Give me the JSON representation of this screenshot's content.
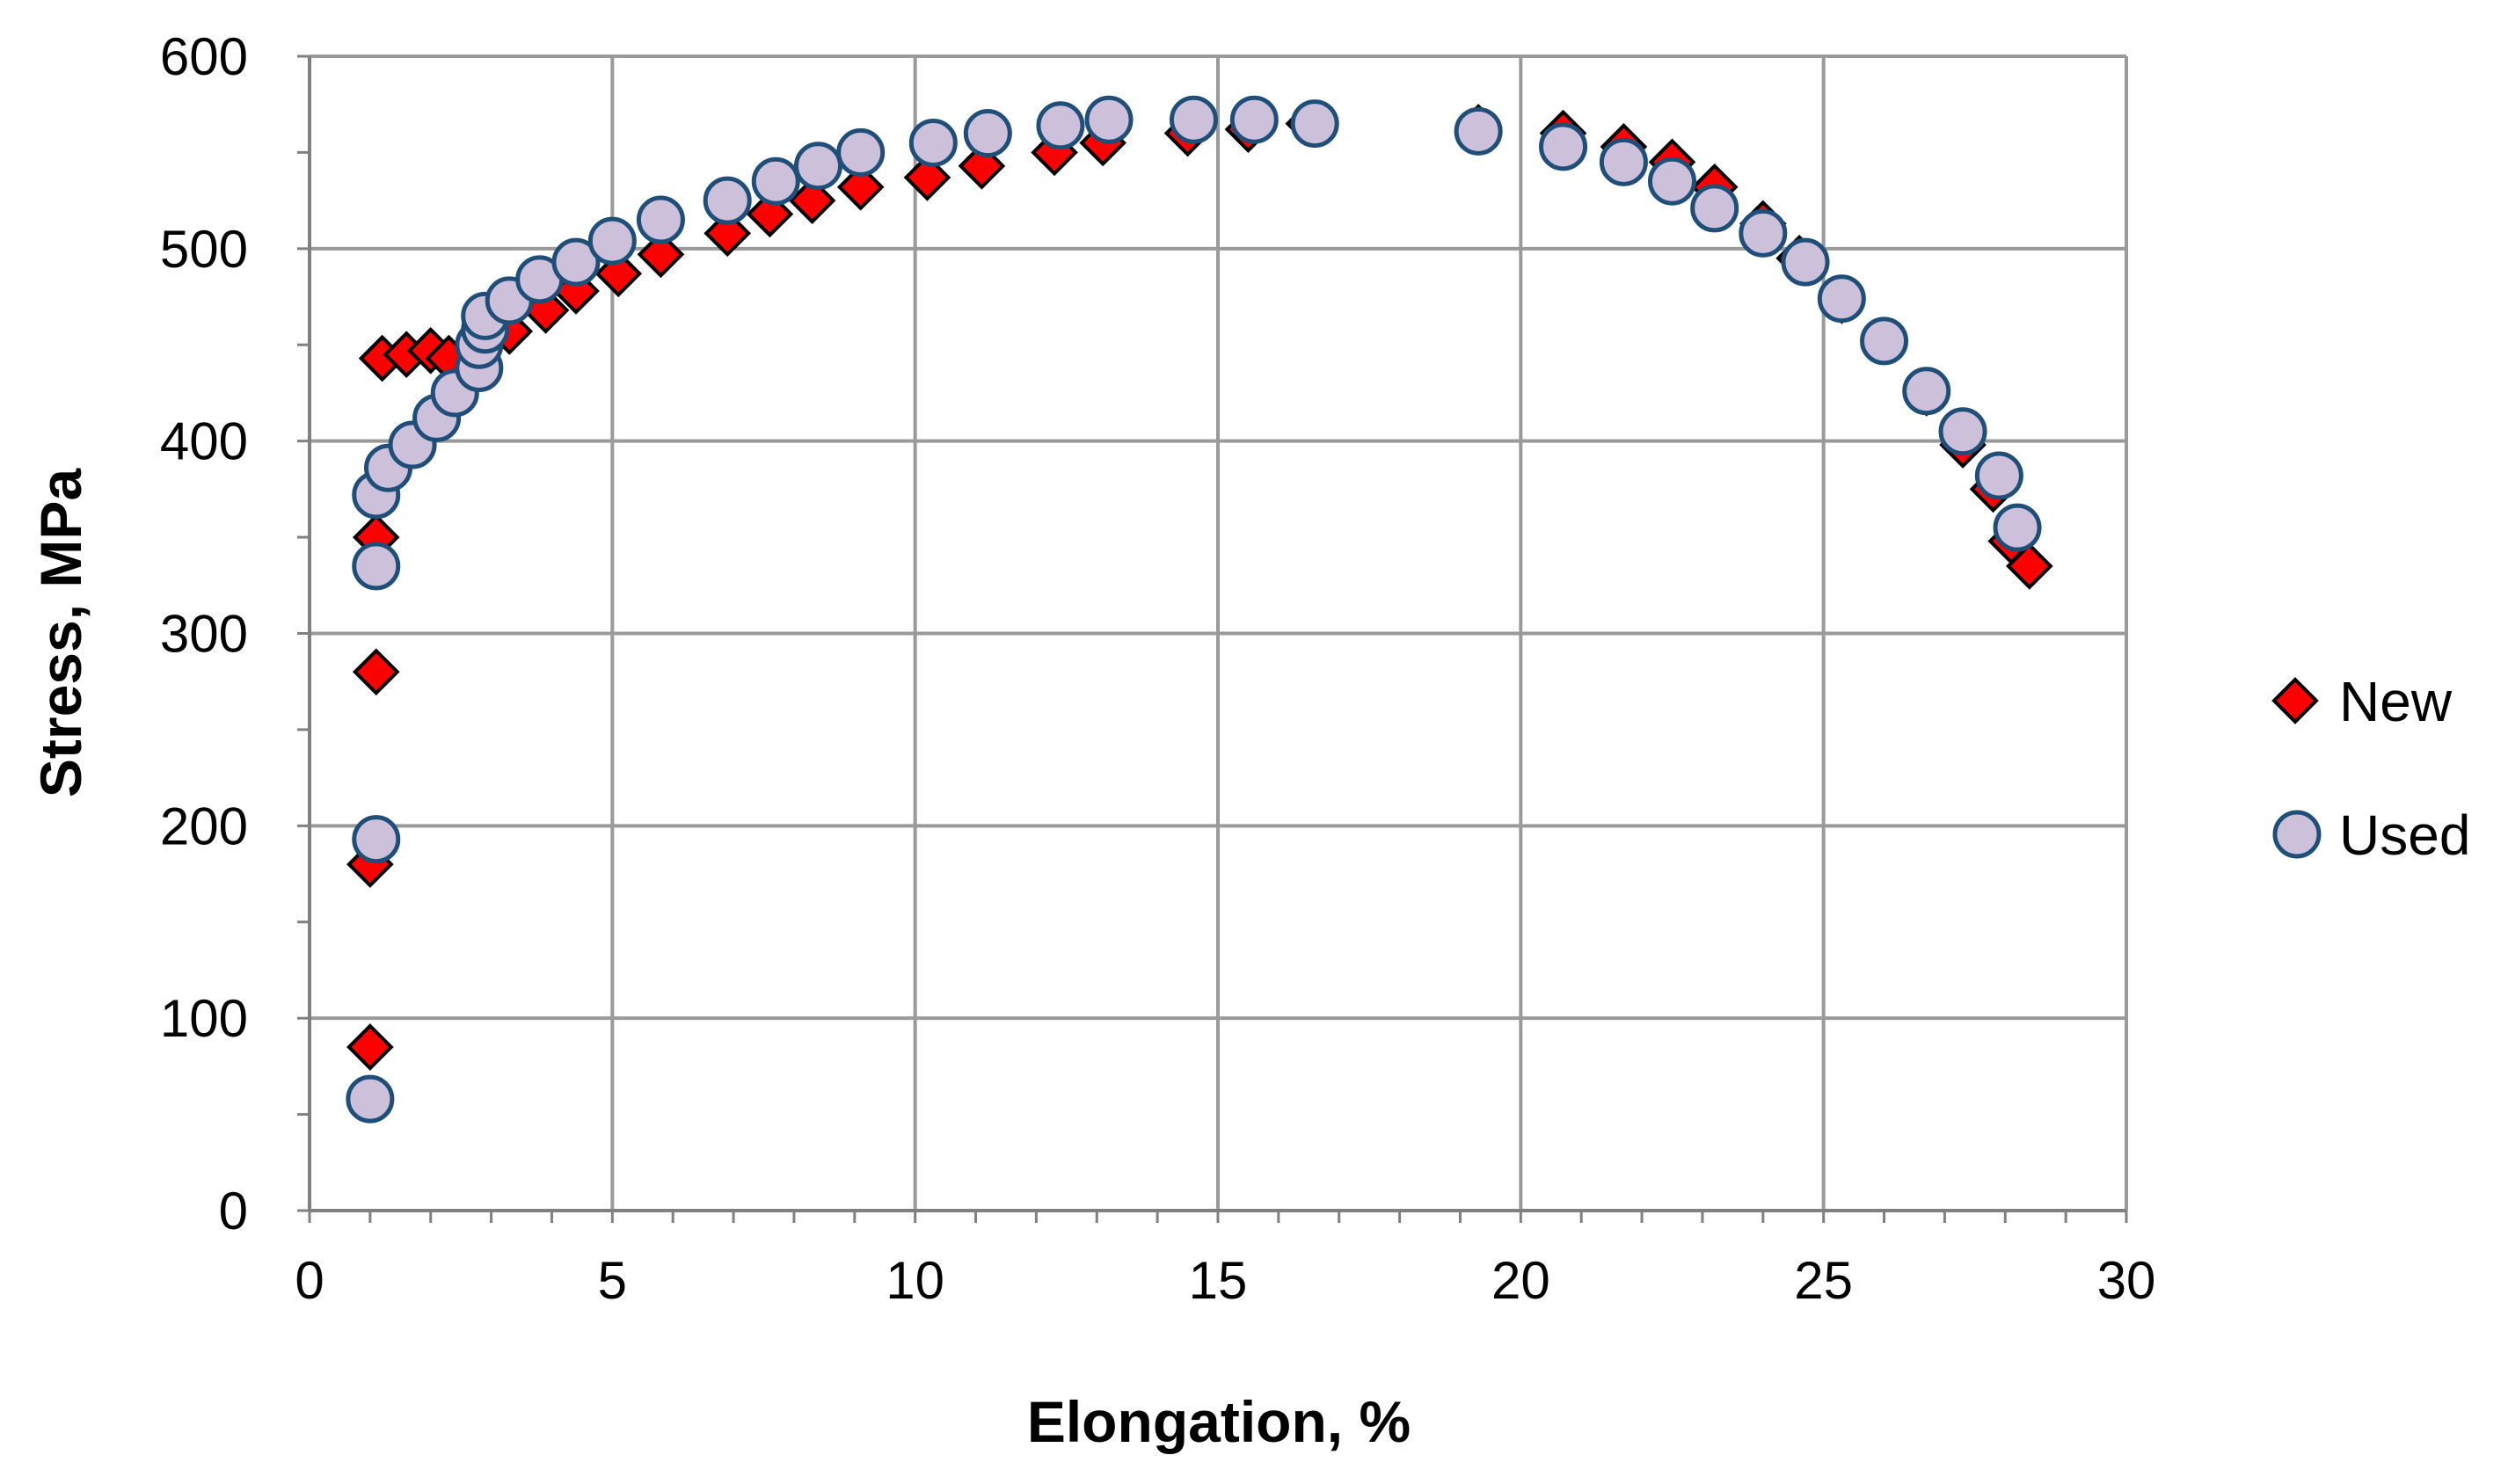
{
  "chart_data": {
    "type": "scatter",
    "title": "",
    "xlabel": "Elongation, %",
    "ylabel": "Stress, MPa",
    "xlim": [
      0,
      30
    ],
    "ylim": [
      0,
      600
    ],
    "x_ticks": [
      "0",
      "5",
      "10",
      "15",
      "20",
      "25",
      "30"
    ],
    "y_ticks": [
      "0",
      "100",
      "200",
      "300",
      "400",
      "500",
      "600"
    ],
    "grid": true,
    "legend_position": "right",
    "series": [
      {
        "name": "New",
        "marker": "diamond",
        "color": "#ff0000",
        "edge_color": "#000000",
        "points": [
          [
            1.0,
            85
          ],
          [
            1.0,
            180
          ],
          [
            1.1,
            280
          ],
          [
            1.1,
            350
          ],
          [
            1.2,
            443
          ],
          [
            1.6,
            445
          ],
          [
            2.0,
            447
          ],
          [
            2.3,
            443
          ],
          [
            2.8,
            448
          ],
          [
            3.3,
            457
          ],
          [
            3.9,
            468
          ],
          [
            4.4,
            478
          ],
          [
            5.1,
            487
          ],
          [
            5.8,
            497
          ],
          [
            6.9,
            508
          ],
          [
            7.6,
            518
          ],
          [
            8.3,
            525
          ],
          [
            9.1,
            532
          ],
          [
            10.2,
            537
          ],
          [
            11.1,
            543
          ],
          [
            12.3,
            550
          ],
          [
            13.1,
            555
          ],
          [
            14.5,
            560
          ],
          [
            15.5,
            562
          ],
          [
            16.5,
            565
          ],
          [
            19.3,
            563
          ],
          [
            20.7,
            560
          ],
          [
            21.7,
            553
          ],
          [
            22.5,
            545
          ],
          [
            23.2,
            532
          ],
          [
            24.0,
            513
          ],
          [
            24.6,
            495
          ],
          [
            25.3,
            473
          ],
          [
            26.0,
            452
          ],
          [
            26.7,
            425
          ],
          [
            27.3,
            398
          ],
          [
            27.8,
            375
          ],
          [
            28.1,
            348
          ],
          [
            28.4,
            335
          ]
        ]
      },
      {
        "name": "Used",
        "marker": "circle",
        "color": "#ccc0da",
        "edge_color": "#1f4e79",
        "points": [
          [
            1.0,
            58
          ],
          [
            1.1,
            193
          ],
          [
            1.1,
            335
          ],
          [
            1.1,
            372
          ],
          [
            1.3,
            386
          ],
          [
            1.7,
            398
          ],
          [
            2.1,
            412
          ],
          [
            2.4,
            425
          ],
          [
            2.8,
            438
          ],
          [
            2.8,
            450
          ],
          [
            2.9,
            458
          ],
          [
            2.9,
            465
          ],
          [
            3.3,
            473
          ],
          [
            3.8,
            484
          ],
          [
            4.4,
            493
          ],
          [
            5.0,
            504
          ],
          [
            5.8,
            515
          ],
          [
            6.9,
            525
          ],
          [
            7.7,
            535
          ],
          [
            8.4,
            543
          ],
          [
            9.1,
            550
          ],
          [
            10.3,
            555
          ],
          [
            11.2,
            560
          ],
          [
            12.4,
            564
          ],
          [
            13.2,
            567
          ],
          [
            14.6,
            567
          ],
          [
            15.6,
            567
          ],
          [
            16.6,
            565
          ],
          [
            19.3,
            561
          ],
          [
            20.7,
            553
          ],
          [
            21.7,
            545
          ],
          [
            22.5,
            535
          ],
          [
            23.2,
            521
          ],
          [
            24.0,
            508
          ],
          [
            24.7,
            493
          ],
          [
            25.3,
            474
          ],
          [
            26.0,
            452
          ],
          [
            26.7,
            426
          ],
          [
            27.3,
            405
          ],
          [
            27.9,
            382
          ],
          [
            28.2,
            355
          ]
        ]
      }
    ]
  }
}
